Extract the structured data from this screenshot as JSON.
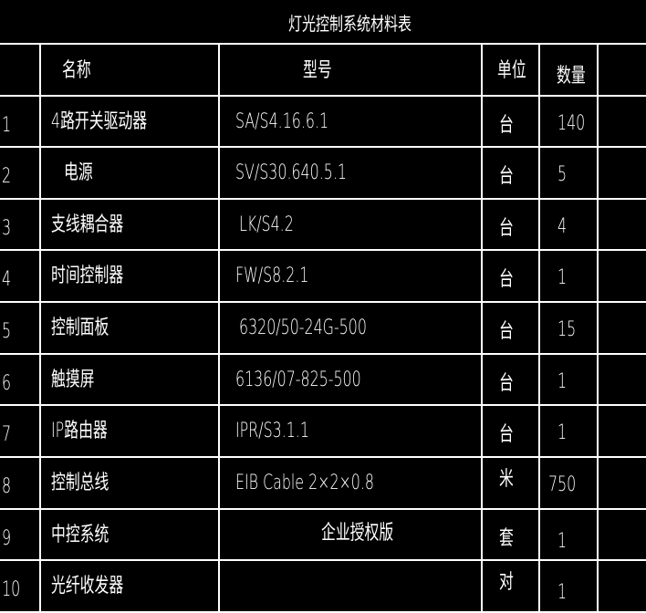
{
  "title": "灯光控制系统材料表",
  "headers": {
    "name": "名称",
    "model": "型号",
    "unit": "单位",
    "qty": "数量"
  },
  "rows": [
    {
      "no": "1",
      "name": "4路开关驱动器",
      "model": "SA/S4.16.6.1",
      "unit": "台",
      "qty": "140"
    },
    {
      "no": "2",
      "name": "电源",
      "model": "SV/S30.640.5.1",
      "unit": "台",
      "qty": "5"
    },
    {
      "no": "3",
      "name": "支线耦合器",
      "model": "LK/S4.2",
      "unit": "台",
      "qty": "4"
    },
    {
      "no": "4",
      "name": "时间控制器",
      "model": "FW/S8.2.1",
      "unit": "台",
      "qty": "1"
    },
    {
      "no": "5",
      "name": "控制面板",
      "model": "6320/50-24G-500",
      "unit": "台",
      "qty": "15"
    },
    {
      "no": "6",
      "name": "触摸屏",
      "model": "6136/07-825-500",
      "unit": "台",
      "qty": "1"
    },
    {
      "no": "7",
      "name": "IP路由器",
      "model": "IPR/S3.1.1",
      "unit": "台",
      "qty": "1"
    },
    {
      "no": "8",
      "name": "控制总线",
      "model": "EIB Cable 2×2×0.8",
      "unit": "米",
      "qty": "750"
    },
    {
      "no": "9",
      "name": "中控系统",
      "model": "企业授权版",
      "unit": "套",
      "qty": "1"
    },
    {
      "no": "10",
      "name": "光纤收发器",
      "model": "",
      "unit": "对",
      "qty": "1"
    }
  ]
}
